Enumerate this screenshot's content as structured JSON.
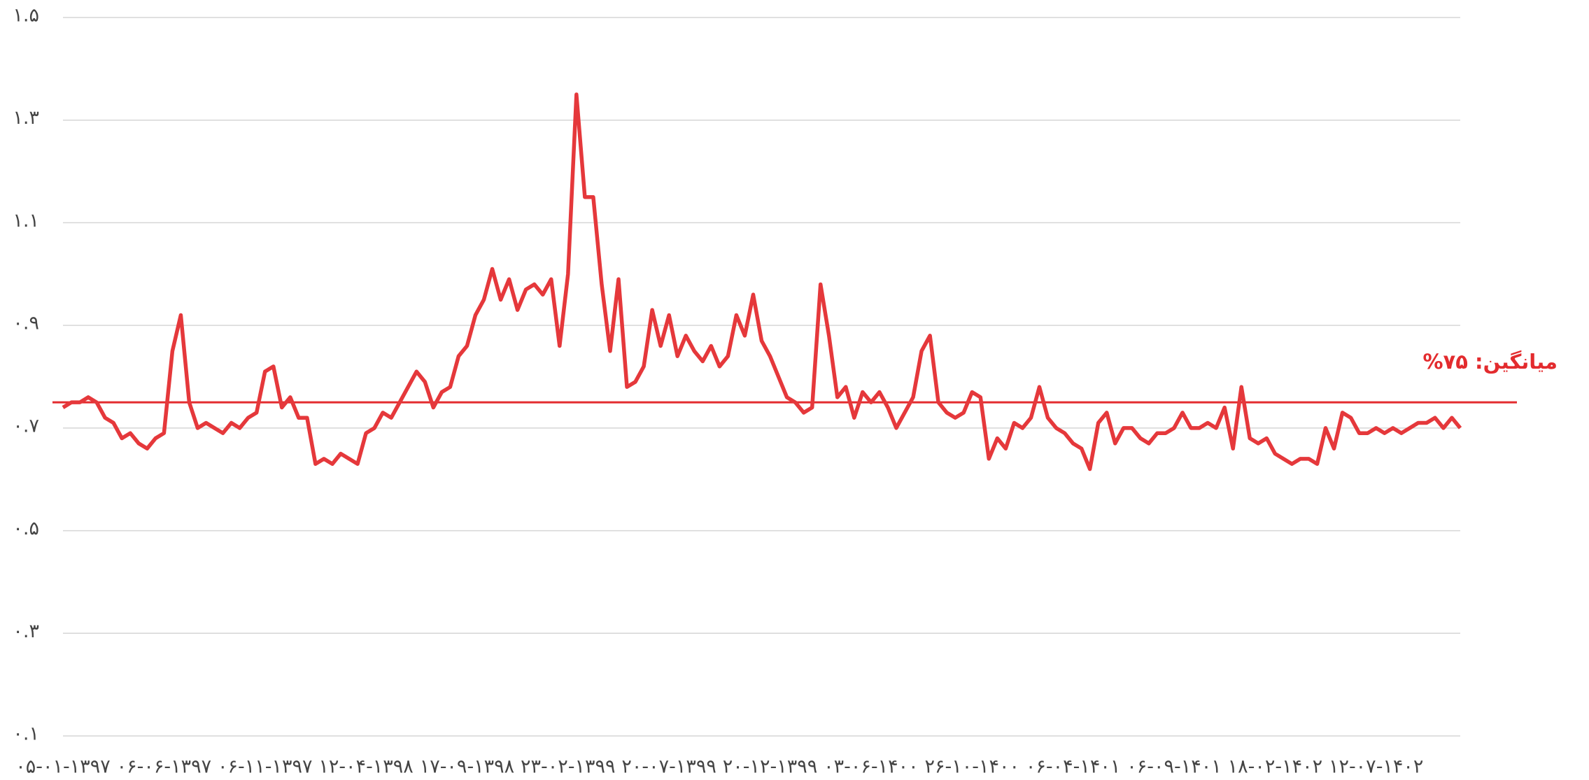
{
  "chart_data": {
    "type": "line",
    "categories": [
      "۰۵-۰۱-۱۳۹۷",
      null,
      null,
      null,
      null,
      null,
      null,
      null,
      null,
      null,
      null,
      null,
      "۰۶-۰۶-۱۳۹۷",
      null,
      null,
      null,
      null,
      null,
      null,
      null,
      null,
      null,
      null,
      null,
      "۰۶-۱۱-۱۳۹۷",
      null,
      null,
      null,
      null,
      null,
      null,
      null,
      null,
      null,
      null,
      null,
      "۱۲-۰۴-۱۳۹۸",
      null,
      null,
      null,
      null,
      null,
      null,
      null,
      null,
      null,
      null,
      null,
      "۱۷-۰۹-۱۳۹۸",
      null,
      null,
      null,
      null,
      null,
      null,
      null,
      null,
      null,
      null,
      null,
      "۲۳-۰۲-۱۳۹۹",
      null,
      null,
      null,
      null,
      null,
      null,
      null,
      null,
      null,
      null,
      null,
      "۲۰-۰۷-۱۳۹۹",
      null,
      null,
      null,
      null,
      null,
      null,
      null,
      null,
      null,
      null,
      null,
      "۲۰-۱۲-۱۳۹۹",
      null,
      null,
      null,
      null,
      null,
      null,
      null,
      null,
      null,
      null,
      null,
      "۰۳-۰۶-۱۴۰۰",
      null,
      null,
      null,
      null,
      null,
      null,
      null,
      null,
      null,
      null,
      null,
      "۲۶-۱۰-۱۴۰۰",
      null,
      null,
      null,
      null,
      null,
      null,
      null,
      null,
      null,
      null,
      null,
      "۰۶-۰۴-۱۴۰۱",
      null,
      null,
      null,
      null,
      null,
      null,
      null,
      null,
      null,
      null,
      null,
      "۰۶-۰۹-۱۴۰۱",
      null,
      null,
      null,
      null,
      null,
      null,
      null,
      null,
      null,
      null,
      null,
      "۱۸-۰۲-۱۴۰۲",
      null,
      null,
      null,
      null,
      null,
      null,
      null,
      null,
      null,
      null,
      null,
      "۱۲-۰۷-۱۴۰۲",
      null,
      null,
      null,
      null,
      null,
      null,
      null,
      null,
      null,
      null
    ],
    "series": [
      {
        "color": "#e5383b",
        "values": [
          0.74,
          0.75,
          0.75,
          0.76,
          0.75,
          0.72,
          0.71,
          0.68,
          0.69,
          0.67,
          0.66,
          0.68,
          0.69,
          0.85,
          0.92,
          0.75,
          0.7,
          0.71,
          0.7,
          0.69,
          0.71,
          0.7,
          0.72,
          0.73,
          0.81,
          0.82,
          0.74,
          0.76,
          0.72,
          0.72,
          0.63,
          0.64,
          0.63,
          0.65,
          0.64,
          0.63,
          0.69,
          0.7,
          0.73,
          0.72,
          0.75,
          0.78,
          0.81,
          0.79,
          0.74,
          0.77,
          0.78,
          0.84,
          0.86,
          0.92,
          0.95,
          1.01,
          0.95,
          0.99,
          0.93,
          0.97,
          0.98,
          0.96,
          0.99,
          0.86,
          1.0,
          1.35,
          1.15,
          1.15,
          0.98,
          0.85,
          0.99,
          0.78,
          0.79,
          0.82,
          0.93,
          0.86,
          0.92,
          0.84,
          0.88,
          0.85,
          0.83,
          0.86,
          0.82,
          0.84,
          0.92,
          0.88,
          0.96,
          0.87,
          0.84,
          0.8,
          0.76,
          0.75,
          0.73,
          0.74,
          0.98,
          0.88,
          0.76,
          0.78,
          0.72,
          0.77,
          0.75,
          0.77,
          0.74,
          0.7,
          0.73,
          0.76,
          0.85,
          0.88,
          0.75,
          0.73,
          0.72,
          0.73,
          0.77,
          0.76,
          0.64,
          0.68,
          0.66,
          0.71,
          0.7,
          0.72,
          0.78,
          0.72,
          0.7,
          0.69,
          0.67,
          0.66,
          0.62,
          0.71,
          0.73,
          0.67,
          0.7,
          0.7,
          0.68,
          0.67,
          0.69,
          0.69,
          0.7,
          0.73,
          0.7,
          0.7,
          0.71,
          0.7,
          0.74,
          0.66,
          0.78,
          0.68,
          0.67,
          0.68,
          0.65,
          0.64,
          0.63,
          0.64,
          0.64,
          0.63,
          0.7,
          0.66,
          0.73,
          0.72,
          0.69,
          0.69,
          0.7,
          0.69,
          0.7,
          0.69,
          0.7,
          0.71,
          0.71,
          0.72,
          0.7,
          0.72,
          0.7
        ]
      }
    ],
    "ylim": [
      0.1,
      1.5
    ],
    "yticks": [
      {
        "value": 0.1,
        "label": "۰.۱"
      },
      {
        "value": 0.3,
        "label": "۰.۳"
      },
      {
        "value": 0.5,
        "label": "۰.۵"
      },
      {
        "value": 0.7,
        "label": "۰.۷"
      },
      {
        "value": 0.9,
        "label": "۰.۹"
      },
      {
        "value": 1.1,
        "label": "۱.۱"
      },
      {
        "value": 1.3,
        "label": "۱.۳"
      },
      {
        "value": 1.5,
        "label": "۱.۵"
      }
    ],
    "grid": true,
    "mean_line": {
      "value": 0.75,
      "label": "میانگین: ۷۵%",
      "color": "#e32b2e"
    }
  }
}
